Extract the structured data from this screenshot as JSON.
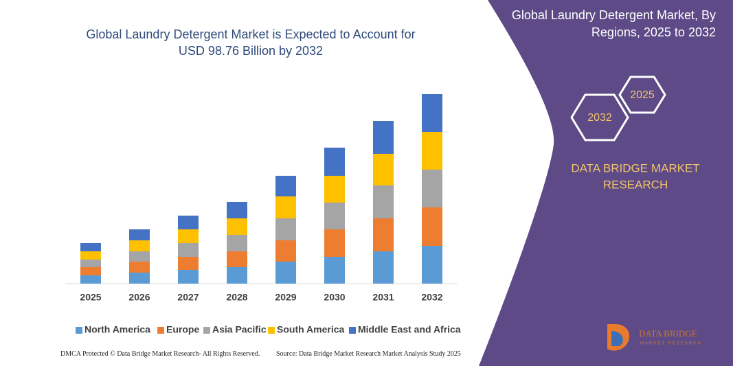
{
  "chart_data": {
    "type": "bar",
    "stacked": true,
    "title": "Global Laundry Detergent Market is Expected to Account for USD 98.76 Billion by 2032",
    "categories": [
      "2025",
      "2026",
      "2027",
      "2028",
      "2029",
      "2030",
      "2031",
      "2032"
    ],
    "series": [
      {
        "name": "North America",
        "color": "#5b9bd5",
        "values": [
          12,
          16,
          20,
          24,
          32,
          39,
          47,
          55
        ]
      },
      {
        "name": "Europe",
        "color": "#ed7d31",
        "values": [
          12,
          16,
          19,
          23,
          31,
          40,
          48,
          56
        ]
      },
      {
        "name": "Asia Pacific",
        "color": "#a5a5a5",
        "values": [
          11,
          15,
          20,
          24,
          32,
          39,
          48,
          55
        ]
      },
      {
        "name": "South America",
        "color": "#ffc000",
        "values": [
          12,
          16,
          20,
          24,
          32,
          39,
          46,
          55
        ]
      },
      {
        "name": "Middle East and Africa",
        "color": "#4472c4",
        "values": [
          12,
          16,
          20,
          24,
          30,
          41,
          48,
          55
        ]
      }
    ]
  },
  "panel": {
    "title": "Global Laundry Detergent Market, By Regions, 2025 to 2032",
    "hexagons": [
      "2025",
      "2032"
    ],
    "brand": [
      "DATA BRIDGE MARKET",
      "RESEARCH"
    ],
    "logo": {
      "name": "DATA BRIDGE",
      "tagline": "MARKET RESEARCH"
    }
  },
  "footer": {
    "left": "DMCA Protected © Data Bridge Market Research- All Rights Reserved.",
    "right": "Source: Data Bridge Market Research Market Analysis Study 2025"
  }
}
